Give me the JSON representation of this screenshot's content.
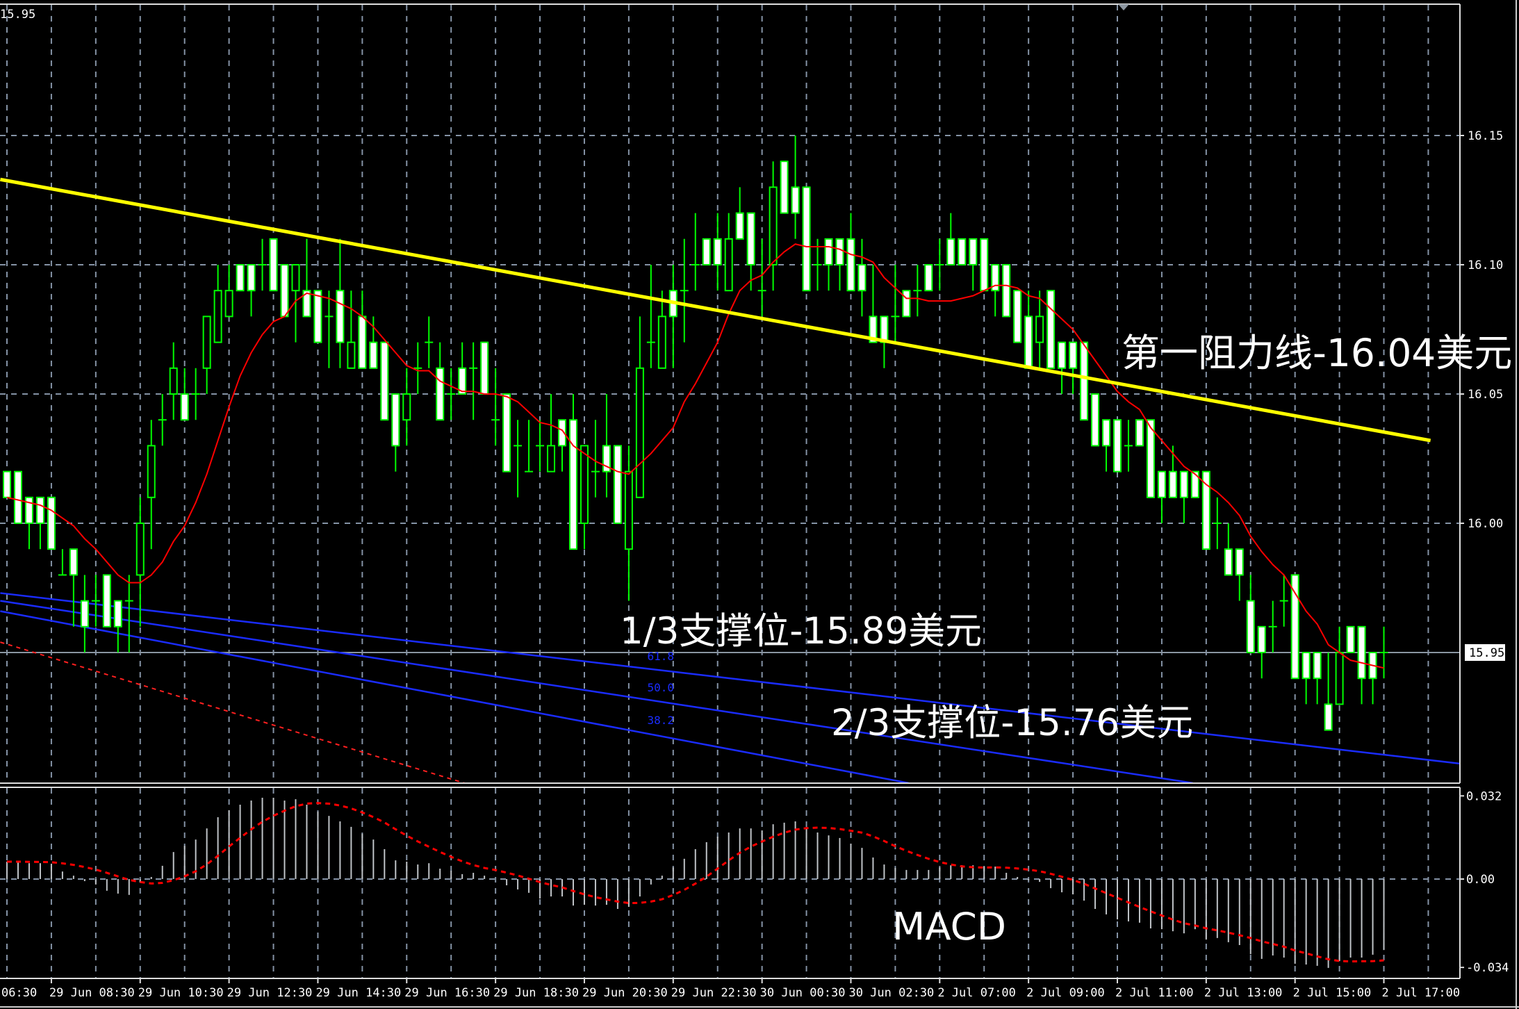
{
  "chart_data": {
    "type": "candlestick",
    "main_panel": {
      "top_left_label": "15.95",
      "y_ticks": [
        "16.15",
        "16.10",
        "16.05",
        "16.00"
      ],
      "y_tick_values": [
        16.15,
        16.1,
        16.05,
        16.0
      ],
      "current_price": 15.95,
      "current_price_label": "15.95",
      "candles_ohlc": [
        [
          16.02,
          16.02,
          16.01,
          16.01
        ],
        [
          16.02,
          16.02,
          16.0,
          16.0
        ],
        [
          16.01,
          16.01,
          15.99,
          16.0
        ],
        [
          16.01,
          16.01,
          15.99,
          16.0
        ],
        [
          16.01,
          16.01,
          15.99,
          15.99
        ],
        [
          15.98,
          15.99,
          15.98,
          15.98
        ],
        [
          15.99,
          15.99,
          15.96,
          15.98
        ],
        [
          15.97,
          15.98,
          15.95,
          15.96
        ],
        [
          15.97,
          15.98,
          15.96,
          15.97
        ],
        [
          15.98,
          15.98,
          15.96,
          15.96
        ],
        [
          15.97,
          15.97,
          15.95,
          15.96
        ],
        [
          15.97,
          15.98,
          15.95,
          15.97
        ],
        [
          15.98,
          16.01,
          15.96,
          16.0
        ],
        [
          16.01,
          16.04,
          15.99,
          16.03
        ],
        [
          16.04,
          16.05,
          16.03,
          16.04
        ],
        [
          16.05,
          16.07,
          16.04,
          16.06
        ],
        [
          16.05,
          16.06,
          16.04,
          16.04
        ],
        [
          16.05,
          16.06,
          16.04,
          16.05
        ],
        [
          16.06,
          16.08,
          16.05,
          16.08
        ],
        [
          16.07,
          16.1,
          16.07,
          16.09
        ],
        [
          16.08,
          16.1,
          16.08,
          16.09
        ],
        [
          16.1,
          16.1,
          16.09,
          16.09
        ],
        [
          16.1,
          16.1,
          16.08,
          16.09
        ],
        [
          16.1,
          16.11,
          16.09,
          16.1
        ],
        [
          16.11,
          16.11,
          16.09,
          16.09
        ],
        [
          16.1,
          16.1,
          16.08,
          16.08
        ],
        [
          16.09,
          16.1,
          16.07,
          16.1
        ],
        [
          16.09,
          16.11,
          16.08,
          16.08
        ],
        [
          16.09,
          16.09,
          16.07,
          16.07
        ],
        [
          16.08,
          16.09,
          16.06,
          16.08
        ],
        [
          16.09,
          16.11,
          16.06,
          16.07
        ],
        [
          16.06,
          16.09,
          16.06,
          16.07
        ],
        [
          16.08,
          16.09,
          16.06,
          16.06
        ],
        [
          16.07,
          16.08,
          16.06,
          16.06
        ],
        [
          16.07,
          16.07,
          16.04,
          16.04
        ],
        [
          16.05,
          16.05,
          16.02,
          16.03
        ],
        [
          16.04,
          16.06,
          16.03,
          16.05
        ],
        [
          16.06,
          16.07,
          16.05,
          16.06
        ],
        [
          16.07,
          16.08,
          16.06,
          16.07
        ],
        [
          16.06,
          16.07,
          16.04,
          16.04
        ],
        [
          16.05,
          16.06,
          16.04,
          16.05
        ],
        [
          16.06,
          16.07,
          16.05,
          16.05
        ],
        [
          16.06,
          16.07,
          16.04,
          16.06
        ],
        [
          16.07,
          16.07,
          16.05,
          16.05
        ],
        [
          16.04,
          16.06,
          16.03,
          16.04
        ],
        [
          16.05,
          16.05,
          16.02,
          16.02
        ],
        [
          16.03,
          16.04,
          16.01,
          16.03
        ],
        [
          16.02,
          16.04,
          16.02,
          16.02
        ],
        [
          16.03,
          16.04,
          16.02,
          16.03
        ],
        [
          16.02,
          16.05,
          16.02,
          16.03
        ],
        [
          16.04,
          16.04,
          16.02,
          16.03
        ],
        [
          16.04,
          16.05,
          15.99,
          15.99
        ],
        [
          16.0,
          16.03,
          15.99,
          16.03
        ],
        [
          16.02,
          16.04,
          16.01,
          16.02
        ],
        [
          16.03,
          16.05,
          16.01,
          16.02
        ],
        [
          16.03,
          16.03,
          16.0,
          16.0
        ],
        [
          15.99,
          16.03,
          15.97,
          16.02
        ],
        [
          16.01,
          16.08,
          16.01,
          16.06
        ],
        [
          16.07,
          16.1,
          16.06,
          16.07
        ],
        [
          16.06,
          16.09,
          16.06,
          16.08
        ],
        [
          16.09,
          16.1,
          16.06,
          16.08
        ],
        [
          16.09,
          16.11,
          16.07,
          16.09
        ],
        [
          16.1,
          16.12,
          16.09,
          16.1
        ],
        [
          16.11,
          16.11,
          16.1,
          16.1
        ],
        [
          16.11,
          16.12,
          16.09,
          16.1
        ],
        [
          16.09,
          16.12,
          16.09,
          16.11
        ],
        [
          16.12,
          16.13,
          16.11,
          16.11
        ],
        [
          16.12,
          16.12,
          16.09,
          16.1
        ],
        [
          16.09,
          16.11,
          16.08,
          16.09
        ],
        [
          16.1,
          16.14,
          16.09,
          16.13
        ],
        [
          16.14,
          16.14,
          16.12,
          16.12
        ],
        [
          16.13,
          16.15,
          16.11,
          16.12
        ],
        [
          16.13,
          16.13,
          16.09,
          16.09
        ],
        [
          16.1,
          16.11,
          16.09,
          16.1
        ],
        [
          16.11,
          16.11,
          16.09,
          16.1
        ],
        [
          16.11,
          16.11,
          16.09,
          16.1
        ],
        [
          16.11,
          16.12,
          16.09,
          16.09
        ],
        [
          16.1,
          16.11,
          16.08,
          16.09
        ],
        [
          16.08,
          16.1,
          16.07,
          16.07
        ],
        [
          16.08,
          16.08,
          16.06,
          16.07
        ],
        [
          16.08,
          16.1,
          16.07,
          16.08
        ],
        [
          16.09,
          16.09,
          16.08,
          16.08
        ],
        [
          16.09,
          16.1,
          16.08,
          16.09
        ],
        [
          16.1,
          16.1,
          16.09,
          16.09
        ],
        [
          16.1,
          16.11,
          16.09,
          16.1
        ],
        [
          16.11,
          16.12,
          16.1,
          16.1
        ],
        [
          16.11,
          16.11,
          16.1,
          16.1
        ],
        [
          16.11,
          16.11,
          16.09,
          16.1
        ],
        [
          16.11,
          16.11,
          16.09,
          16.09
        ],
        [
          16.1,
          16.1,
          16.08,
          16.09
        ],
        [
          16.1,
          16.1,
          16.08,
          16.08
        ],
        [
          16.09,
          16.09,
          16.07,
          16.07
        ],
        [
          16.08,
          16.09,
          16.06,
          16.06
        ],
        [
          16.07,
          16.09,
          16.06,
          16.08
        ],
        [
          16.09,
          16.09,
          16.06,
          16.06
        ],
        [
          16.07,
          16.07,
          16.05,
          16.06
        ],
        [
          16.07,
          16.07,
          16.05,
          16.06
        ],
        [
          16.07,
          16.07,
          16.04,
          16.04
        ],
        [
          16.05,
          16.05,
          16.03,
          16.03
        ],
        [
          16.04,
          16.04,
          16.02,
          16.03
        ],
        [
          16.04,
          16.04,
          16.02,
          16.02
        ],
        [
          16.03,
          16.04,
          16.02,
          16.03
        ],
        [
          16.04,
          16.04,
          16.03,
          16.03
        ],
        [
          16.04,
          16.04,
          16.01,
          16.01
        ],
        [
          16.02,
          16.02,
          16.0,
          16.01
        ],
        [
          16.02,
          16.03,
          16.01,
          16.01
        ],
        [
          16.02,
          16.02,
          16.0,
          16.01
        ],
        [
          16.02,
          16.02,
          16.01,
          16.01
        ],
        [
          16.02,
          16.02,
          15.99,
          15.99
        ],
        [
          16.0,
          16.01,
          15.99,
          16.0
        ],
        [
          15.99,
          16.0,
          15.98,
          15.98
        ],
        [
          15.99,
          15.99,
          15.97,
          15.98
        ],
        [
          15.97,
          15.98,
          15.95,
          15.95
        ],
        [
          15.96,
          15.96,
          15.94,
          15.95
        ],
        [
          15.96,
          15.97,
          15.95,
          15.96
        ],
        [
          15.97,
          15.98,
          15.96,
          15.97
        ],
        [
          15.98,
          15.98,
          15.94,
          15.94
        ],
        [
          15.95,
          15.95,
          15.93,
          15.94
        ],
        [
          15.95,
          15.95,
          15.93,
          15.94
        ],
        [
          15.93,
          15.95,
          15.92,
          15.92
        ],
        [
          15.93,
          15.96,
          15.93,
          15.95
        ],
        [
          15.96,
          15.96,
          15.95,
          15.95
        ],
        [
          15.96,
          15.96,
          15.93,
          15.94
        ],
        [
          15.95,
          15.95,
          15.93,
          15.94
        ],
        [
          15.95,
          15.96,
          15.94,
          15.95
        ]
      ],
      "resistance_trendline": {
        "from": {
          "candle": -0.6,
          "price": 16.133
        },
        "to": {
          "candle": 128.2,
          "price": 16.032
        }
      },
      "fib_lines": [
        {
          "from": {
            "candle": -0.6,
            "price": 15.973
          },
          "to": {
            "candle": 130.9,
            "price": 15.907
          }
        },
        {
          "from": {
            "candle": -0.6,
            "price": 15.97
          },
          "to": {
            "candle": 106.8,
            "price": 15.8995
          }
        },
        {
          "from": {
            "candle": -0.6,
            "price": 15.966
          },
          "to": {
            "candle": 81.2,
            "price": 15.8995
          }
        }
      ],
      "fib_labels": [
        "61.8",
        "50.0",
        "38.2"
      ],
      "dashed_red_line": {
        "from": {
          "candle": -0.6,
          "price": 15.954
        },
        "to": {
          "candle": 41.2,
          "price": 15.8995
        }
      },
      "annotations": {
        "resistance": "第一阻力线-16.04美元",
        "support_1": "1/3支撑位-15.89美元",
        "support_2": "2/3支撑位-15.76美元"
      }
    },
    "macd_panel": {
      "label": "MACD",
      "y_ticks": [
        "0.032",
        "0.00",
        "-0.034"
      ],
      "y_tick_values": [
        0.032,
        0.0,
        -0.034
      ],
      "histogram": [
        0.0067,
        0.0067,
        0.0061,
        0.0061,
        0.0059,
        0.0029,
        0.0013,
        -0.0008,
        -0.0021,
        -0.0045,
        -0.0056,
        -0.0061,
        -0.0013,
        0.0008,
        0.0051,
        0.0104,
        0.0128,
        0.0152,
        0.0195,
        0.0238,
        0.0265,
        0.0286,
        0.0302,
        0.0313,
        0.0313,
        0.0302,
        0.0307,
        0.0286,
        0.0259,
        0.0243,
        0.0222,
        0.0201,
        0.0174,
        0.0152,
        0.0115,
        0.0072,
        0.0067,
        0.0056,
        0.0061,
        0.004,
        0.0032,
        0.0019,
        0.0024,
        0.0013,
        0.0,
        -0.0024,
        -0.004,
        -0.0053,
        -0.0075,
        -0.0067,
        -0.0067,
        -0.0102,
        -0.0099,
        -0.0102,
        -0.0099,
        -0.0115,
        -0.0107,
        -0.0067,
        -0.0021,
        0.0013,
        0.0045,
        0.0078,
        0.0115,
        0.0142,
        0.0163,
        0.0179,
        0.0195,
        0.0195,
        0.0187,
        0.0211,
        0.0217,
        0.0222,
        0.0195,
        0.0179,
        0.0168,
        0.0158,
        0.0136,
        0.012,
        0.0083,
        0.0056,
        0.0043,
        0.0035,
        0.0035,
        0.0035,
        0.0045,
        0.0053,
        0.0053,
        0.0053,
        0.0048,
        0.0048,
        0.0024,
        0.0008,
        -0.0005,
        -0.0011,
        -0.0035,
        -0.0051,
        -0.0059,
        -0.0083,
        -0.0115,
        -0.0136,
        -0.0155,
        -0.0163,
        -0.0168,
        -0.019,
        -0.0193,
        -0.0201,
        -0.0209,
        -0.0193,
        -0.0233,
        -0.0227,
        -0.0243,
        -0.0254,
        -0.0289,
        -0.0307,
        -0.0294,
        -0.0302,
        -0.0326,
        -0.0329,
        -0.0334,
        -0.0342,
        -0.0316,
        -0.0302,
        -0.0302,
        -0.0291,
        -0.0273
      ]
    },
    "x_axis": {
      "labels": [
        "06:30",
        "29 Jun 08:30",
        "29 Jun 10:30",
        "29 Jun 12:30",
        "29 Jun 14:30",
        "29 Jun 16:30",
        "29 Jun 18:30",
        "29 Jun 20:30",
        "29 Jun 22:30",
        "30 Jun 00:30",
        "30 Jun 02:30",
        "2 Jul 07:00",
        "2 Jul 09:00",
        "2 Jul 11:00",
        "2 Jul 13:00",
        "2 Jul 15:00",
        "2 Jul 17:00"
      ],
      "label_candle_index": [
        -4,
        4,
        12,
        20,
        28,
        36,
        44,
        52,
        60,
        68,
        76,
        84,
        92,
        100,
        108,
        116,
        124
      ]
    },
    "grid": true,
    "colors": {
      "background": "#000000",
      "candle": "#00ff00",
      "bear_body": "#ffffff",
      "moving_average": "#ff0000",
      "trendline": "#ffff00",
      "fib": "#1a2cff",
      "grid": "#8593a6",
      "macd_histogram": "#c0c4c8",
      "macd_signal": "#ff0000"
    }
  }
}
